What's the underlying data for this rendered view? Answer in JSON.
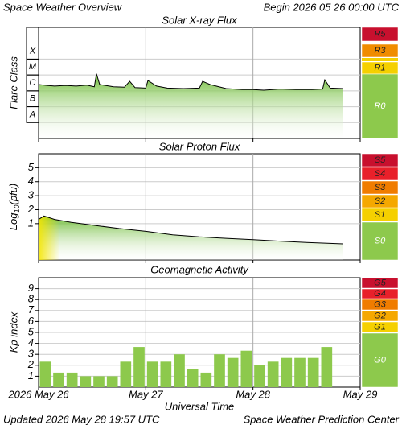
{
  "header": {
    "title": "Space Weather Overview",
    "begin": "Begin 2026 05 26 00:00 UTC"
  },
  "footer": {
    "updated": "Updated 2026 May 28 19:57 UTC",
    "source": "Space Weather Prediction Center"
  },
  "x_axis": {
    "label": "Universal Time",
    "xlim": [
      0,
      3
    ],
    "xticks": [
      {
        "value": 0,
        "label": "2026 May 26"
      },
      {
        "value": 1,
        "label": "May 27"
      },
      {
        "value": 2,
        "label": "May 28"
      },
      {
        "value": 3,
        "label": "May 29"
      }
    ]
  },
  "chart_data": [
    {
      "type": "line",
      "title": "Solar X-ray Flux",
      "ylabel": "Flare Class",
      "log": true,
      "grid": true,
      "ylim": [
        1e-09,
        0.01
      ],
      "yticks": [
        {
          "value": 1e-08,
          "label": "A"
        },
        {
          "value": 1e-07,
          "label": "B"
        },
        {
          "value": 1e-06,
          "label": "C"
        },
        {
          "value": 1e-05,
          "label": "M"
        },
        {
          "value": 0.0001,
          "label": "X"
        }
      ],
      "x": [
        0,
        0.08,
        0.15,
        0.25,
        0.35,
        0.45,
        0.52,
        0.54,
        0.57,
        0.7,
        0.8,
        0.85,
        0.9,
        1.0,
        1.02,
        1.1,
        1.2,
        1.35,
        1.5,
        1.53,
        1.6,
        1.75,
        1.9,
        2.0,
        2.1,
        2.25,
        2.4,
        2.55,
        2.65,
        2.67,
        2.72,
        2.84
      ],
      "values": [
        2.5e-06,
        2.2e-06,
        2e-06,
        2.2e-06,
        2e-06,
        2.3e-06,
        1.8e-06,
        1.2e-05,
        2.5e-06,
        1.8e-06,
        1.7e-06,
        4e-06,
        1.6e-06,
        1.5e-06,
        4.5e-06,
        2e-06,
        1.5e-06,
        1.4e-06,
        1.5e-06,
        4e-06,
        2.5e-06,
        1.4e-06,
        1.2e-06,
        1.2e-06,
        1.1e-06,
        1.3e-06,
        1.2e-06,
        1.2e-06,
        1.3e-06,
        5e-06,
        1.5e-06,
        1.4e-06
      ],
      "color": "#000000",
      "fill": "#7cc241",
      "scale": [
        {
          "label": "R5",
          "color": "#c8102e"
        },
        {
          "label": "R3",
          "color": "#f08c00"
        },
        {
          "label": "R1",
          "color": "#f5d000"
        },
        {
          "label": "R0",
          "color": "#8dc94c"
        }
      ]
    },
    {
      "type": "line",
      "title": "Solar Proton Flux",
      "ylabel": {
        "base": "Log",
        "sub": "10",
        "rest": "(pfu)"
      },
      "grid": true,
      "ylim": [
        -1.6,
        6
      ],
      "yticks": [
        1,
        2,
        3,
        4,
        5
      ],
      "x": [
        0,
        0.05,
        0.15,
        0.3,
        0.5,
        0.75,
        1.0,
        1.25,
        1.5,
        1.75,
        2.0,
        2.25,
        2.5,
        2.84
      ],
      "values": [
        1.3,
        1.55,
        1.3,
        1.1,
        0.9,
        0.65,
        0.45,
        0.2,
        0.05,
        -0.05,
        -0.15,
        -0.25,
        -0.35,
        -0.45
      ],
      "color": "#000000",
      "fill": "#7cc241",
      "scale": [
        {
          "label": "S5",
          "color": "#c8102e"
        },
        {
          "label": "S4",
          "color": "#e8202a"
        },
        {
          "label": "S3",
          "color": "#f07c00"
        },
        {
          "label": "S2",
          "color": "#f5a800"
        },
        {
          "label": "S1",
          "color": "#f5d000"
        },
        {
          "label": "S0",
          "color": "#8dc94c"
        }
      ]
    },
    {
      "type": "bar",
      "title": "Geomagnetic Activity",
      "ylabel": "Kp index",
      "grid": true,
      "ylim": [
        0,
        10
      ],
      "yticks": [
        1,
        2,
        3,
        4,
        5,
        6,
        7,
        8,
        9
      ],
      "bin": 0.125,
      "x": [
        0,
        0.125,
        0.25,
        0.375,
        0.5,
        0.625,
        0.75,
        0.875,
        1.0,
        1.125,
        1.25,
        1.375,
        1.5,
        1.625,
        1.75,
        1.875,
        2.0,
        2.125,
        2.25,
        2.375,
        2.5,
        2.625
      ],
      "values": [
        2.33,
        1.33,
        1.33,
        1,
        1,
        1,
        2.33,
        3.67,
        2.33,
        2.33,
        3,
        1.67,
        1.33,
        3,
        2.67,
        3.33,
        2,
        2.33,
        2.67,
        2.67,
        2.67,
        3.67
      ],
      "color": "#8dc94c",
      "scale": [
        {
          "label": "G5",
          "color": "#c8102e"
        },
        {
          "label": "G4",
          "color": "#e8202a"
        },
        {
          "label": "G3",
          "color": "#f07c00"
        },
        {
          "label": "G2",
          "color": "#f5a800"
        },
        {
          "label": "G1",
          "color": "#f5d000"
        },
        {
          "label": "G0",
          "color": "#8dc94c"
        }
      ]
    }
  ]
}
